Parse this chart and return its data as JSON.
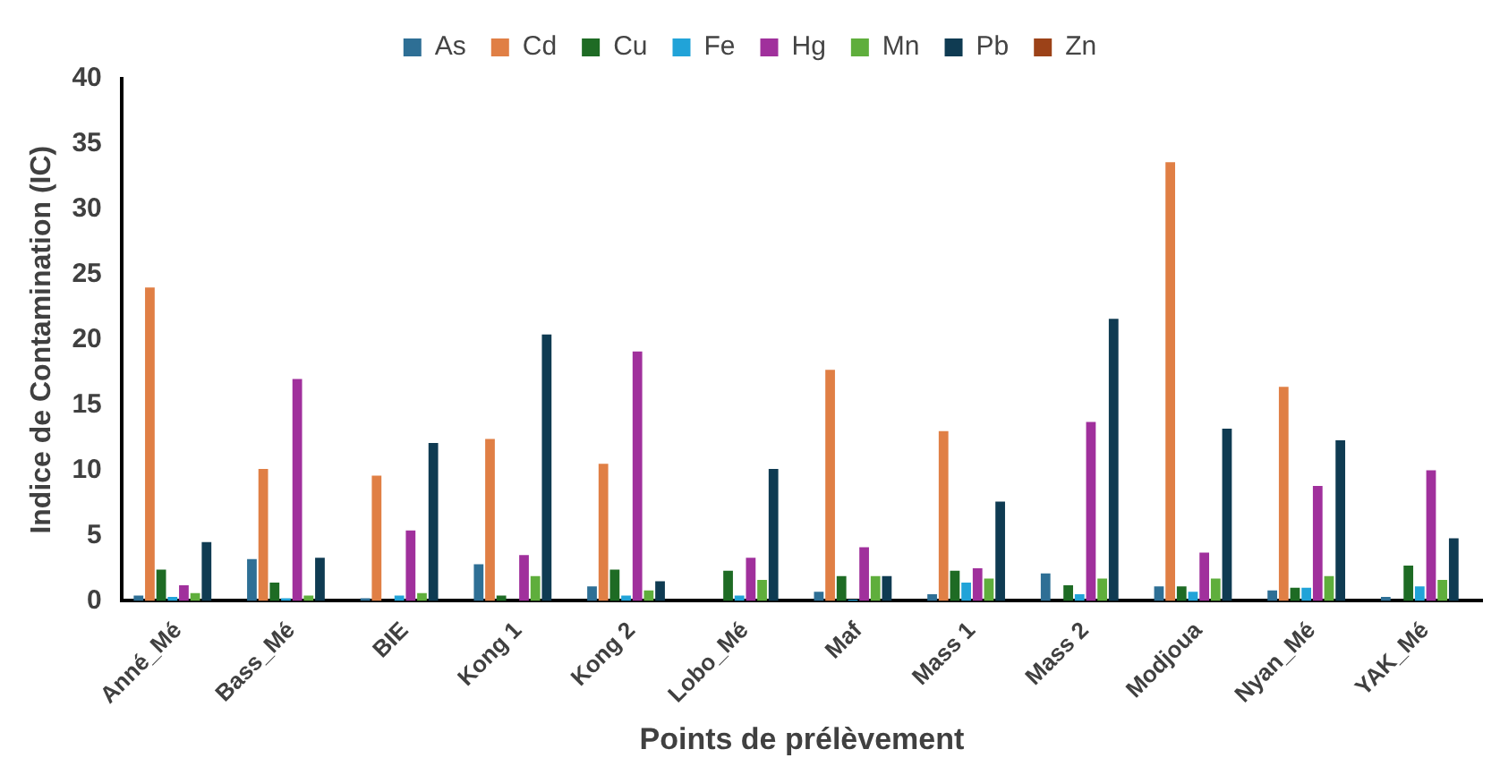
{
  "chart_data": {
    "type": "bar",
    "xlabel": "Points de prélèvement",
    "ylabel": "Indice de Contamination (IC)",
    "categories": [
      "Anné_Mé",
      "Bass_Mé",
      "BIE",
      "Kong 1",
      "Kong 2",
      "Lobo_Mé",
      "Maf",
      "Mass 1",
      "Mass 2",
      "Modjoua",
      "Nyan_Mé",
      "YAK_Mé"
    ],
    "series": [
      {
        "name": "As",
        "color": "#2e6f95",
        "values": [
          0.4,
          3.2,
          0.2,
          2.8,
          1.1,
          0,
          0.7,
          0.5,
          2.1,
          1.1,
          0.8,
          0.3
        ]
      },
      {
        "name": "Cd",
        "color": "#e07f45",
        "values": [
          24,
          10.1,
          9.6,
          12.4,
          10.5,
          0,
          17.7,
          13,
          0,
          33.6,
          16.4,
          0
        ]
      },
      {
        "name": "Cu",
        "color": "#1e6b24",
        "values": [
          2.4,
          1.4,
          0,
          0.4,
          2.4,
          2.3,
          1.9,
          2.3,
          1.2,
          1.1,
          1,
          2.7
        ]
      },
      {
        "name": "Fe",
        "color": "#21a3d8",
        "values": [
          0.3,
          0.2,
          0.4,
          0,
          0.4,
          0.4,
          0.1,
          1.4,
          0.5,
          0.7,
          1,
          1.1
        ]
      },
      {
        "name": "Hg",
        "color": "#a0309c",
        "values": [
          1.2,
          17,
          5.4,
          3.5,
          19.1,
          3.3,
          4.1,
          2.5,
          13.7,
          3.7,
          8.8,
          10
        ]
      },
      {
        "name": "Mn",
        "color": "#5fae3c",
        "values": [
          0.6,
          0.4,
          0.6,
          1.9,
          0.8,
          1.6,
          1.9,
          1.7,
          1.7,
          1.7,
          1.9,
          1.6
        ]
      },
      {
        "name": "Pb",
        "color": "#0f3b52",
        "values": [
          4.5,
          3.3,
          12.1,
          20.4,
          1.5,
          10.1,
          1.9,
          7.6,
          21.6,
          13.2,
          12.3,
          4.8
        ]
      },
      {
        "name": "Zn",
        "color": "#9c4218",
        "values": [
          0,
          0,
          0,
          0,
          0,
          0,
          0,
          0,
          0,
          0,
          0,
          0
        ]
      }
    ],
    "ylim": [
      0,
      40
    ],
    "yticks": [
      0,
      5,
      10,
      15,
      20,
      25,
      30,
      35,
      40
    ],
    "grid": false,
    "legend": "top"
  }
}
